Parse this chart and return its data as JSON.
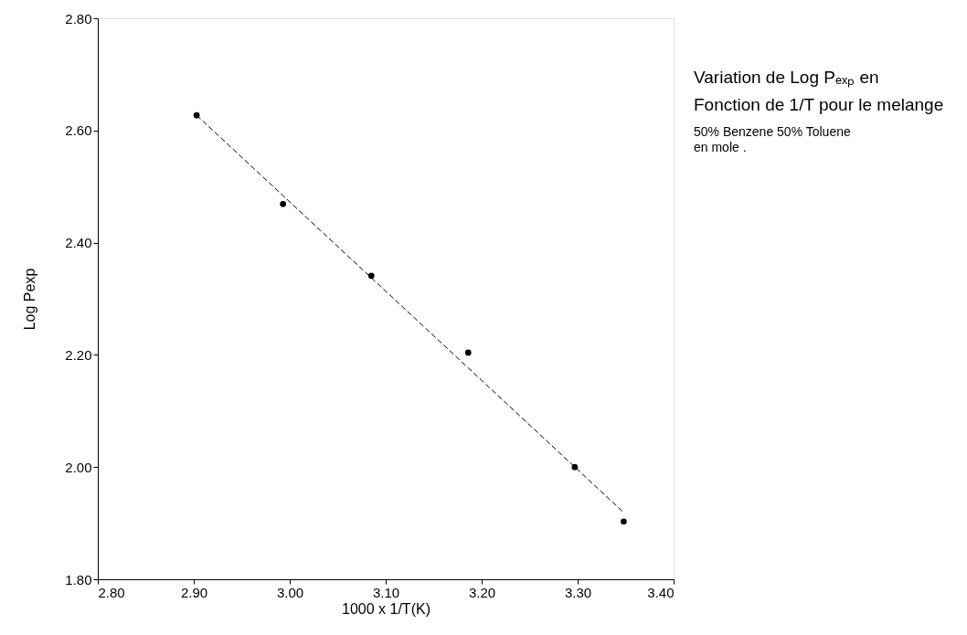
{
  "chart_data": {
    "type": "scatter",
    "xlabel": "1000 x 1/T(K)",
    "ylabel": "Log Pexp",
    "annotations": [
      "Variation de Log Pₑₓₚ en",
      "Fonction de 1/T pour le melange",
      "50% Benzene 50% Toluene",
      "en mole ."
    ],
    "series": [
      {
        "color": "#000000",
        "marker": "circle",
        "x": [
          2.903,
          2.993,
          3.085,
          3.186,
          3.297,
          3.348
        ],
        "values": [
          2.627,
          2.469,
          2.341,
          2.204,
          2.0,
          1.903
        ]
      },
      {
        "type": "line",
        "color": "#000000",
        "line_style": "dashed",
        "marker": "none",
        "x": [
          2.903,
          3.348
        ],
        "values": [
          2.627,
          1.919
        ]
      }
    ],
    "xlim": [
      2.8,
      3.4
    ],
    "ylim": [
      1.8,
      2.8
    ],
    "xticks": [
      {
        "value": 2.8,
        "label": "2.80"
      },
      {
        "value": 2.9,
        "label": "2.90"
      },
      {
        "value": 3.0,
        "label": "3.00"
      },
      {
        "value": 3.1,
        "label": "3.10"
      },
      {
        "value": 3.2,
        "label": "3.20"
      },
      {
        "value": 3.3,
        "label": "3.30"
      },
      {
        "value": 3.4,
        "label": "3.40"
      }
    ],
    "yticks": [
      {
        "value": 1.8,
        "label": "1.80"
      },
      {
        "value": 2.0,
        "label": "2.00"
      },
      {
        "value": 2.2,
        "label": "2.20"
      },
      {
        "value": 2.4,
        "label": "2.40"
      },
      {
        "value": 2.6,
        "label": "2.60"
      },
      {
        "value": 2.8,
        "label": "2.80"
      }
    ],
    "grid": false
  }
}
